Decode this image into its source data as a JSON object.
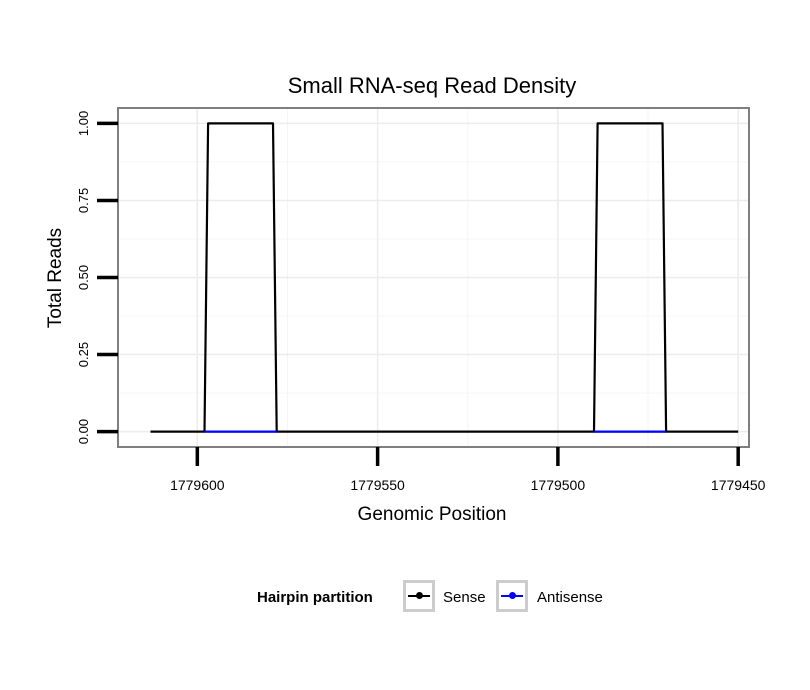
{
  "chart_data": {
    "type": "line",
    "title": "Small RNA-seq Read Density",
    "xlabel": "Genomic Position",
    "ylabel": "Total Reads",
    "x_reversed": true,
    "xlim": [
      1779622,
      1779447
    ],
    "ylim": [
      -0.05,
      1.05
    ],
    "x_ticks": [
      1779600,
      1779550,
      1779500,
      1779450
    ],
    "x_tick_labels": [
      "1779600",
      "1779550",
      "1779500",
      "1779450"
    ],
    "y_ticks": [
      0,
      0.25,
      0.5,
      0.75,
      1.0
    ],
    "y_tick_labels": [
      "0.00",
      "0.25",
      "0.50",
      "0.75",
      "1.00"
    ],
    "grid": true,
    "legend_position": "bottom",
    "series": [
      {
        "name": "Sense",
        "color": "#000000",
        "x": [
          1779613,
          1779598,
          1779597,
          1779579,
          1779578,
          1779490,
          1779489,
          1779471,
          1779470,
          1779450
        ],
        "y": [
          0,
          0,
          1,
          1,
          0,
          0,
          1,
          1,
          0,
          0
        ]
      },
      {
        "name": "Antisense",
        "color": "#0000ff",
        "x": [
          1779598,
          1779578,
          1779490,
          1779470
        ],
        "y": [
          0,
          0,
          0,
          0
        ]
      }
    ]
  },
  "legend": {
    "title": "Hairpin partition",
    "items": [
      {
        "label": "Sense",
        "color": "#000000"
      },
      {
        "label": "Antisense",
        "color": "#0000ff"
      }
    ]
  }
}
